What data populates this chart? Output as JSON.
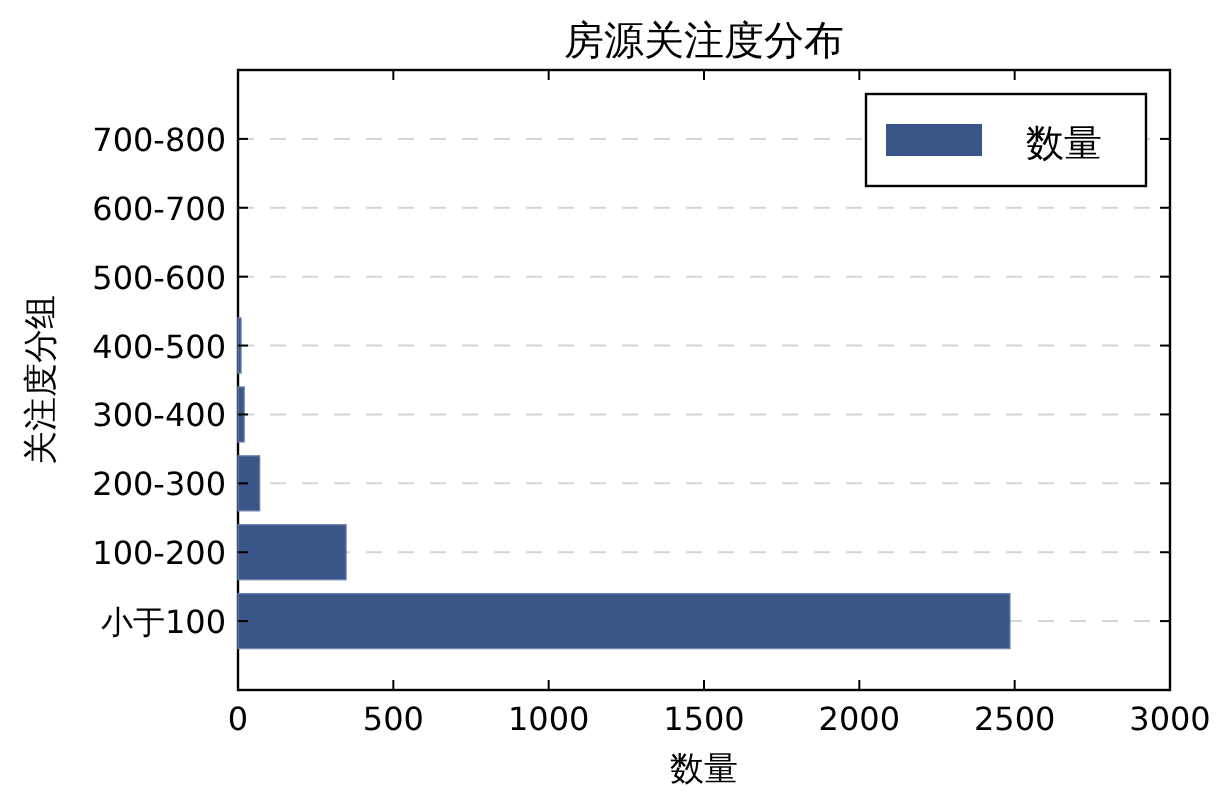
{
  "chart_data": {
    "type": "bar",
    "orientation": "horizontal",
    "title": "房源关注度分布",
    "xlabel": "数量",
    "ylabel": "关注度分组",
    "categories": [
      "700-800",
      "600-700",
      "500-600",
      "400-500",
      "300-400",
      "200-300",
      "100-200",
      "小于100"
    ],
    "series": [
      {
        "name": "数量",
        "color": "#3a5689",
        "values": [
          0,
          0,
          0,
          10,
          20,
          70,
          348,
          2485
        ]
      }
    ],
    "xlim": [
      0,
      3000
    ],
    "xticks": [
      0,
      500,
      1000,
      1500,
      2000,
      2500,
      3000
    ],
    "grid": "y",
    "legend": "top right"
  }
}
